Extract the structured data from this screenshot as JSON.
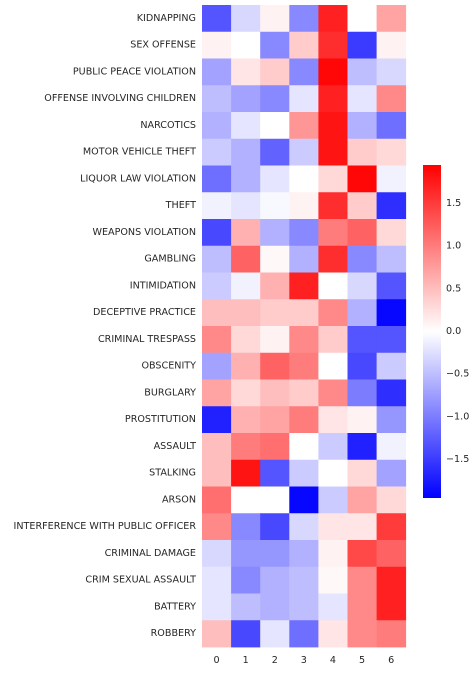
{
  "chart_data": {
    "type": "heatmap",
    "title": "",
    "xlabel": "",
    "ylabel": "",
    "x_categories": [
      "0",
      "1",
      "2",
      "3",
      "4",
      "5",
      "6"
    ],
    "y_categories": [
      "KIDNAPPING",
      "SEX OFFENSE",
      "PUBLIC PEACE VIOLATION",
      "OFFENSE INVOLVING CHILDREN",
      "NARCOTICS",
      "MOTOR VEHICLE THEFT",
      "LIQUOR LAW VIOLATION",
      "THEFT",
      "WEAPONS VIOLATION",
      "GAMBLING",
      "INTIMIDATION",
      "DECEPTIVE PRACTICE",
      "CRIMINAL TRESPASS",
      "OBSCENITY",
      "BURGLARY",
      "PROSTITUTION",
      "ASSAULT",
      "STALKING",
      "ARSON",
      "INTERFERENCE WITH PUBLIC OFFICER",
      "CRIMINAL DAMAGE",
      "CRIM SEXUAL ASSAULT",
      "BATTERY",
      "ROBBERY"
    ],
    "values": [
      [
        -1.3,
        -0.3,
        0.1,
        -0.9,
        1.7,
        0.0,
        0.7
      ],
      [
        0.1,
        0.0,
        -0.9,
        0.4,
        1.6,
        -1.5,
        0.1
      ],
      [
        -0.7,
        0.2,
        0.4,
        -0.9,
        1.9,
        -0.5,
        -0.3
      ],
      [
        -0.5,
        -0.7,
        -0.9,
        -0.2,
        1.7,
        -0.2,
        0.9
      ],
      [
        -0.6,
        -0.2,
        0.0,
        0.8,
        1.8,
        -0.6,
        -1.1
      ],
      [
        -0.4,
        -0.6,
        -1.2,
        -0.4,
        1.8,
        0.4,
        0.3
      ],
      [
        -1.1,
        -0.6,
        -0.2,
        0.0,
        0.3,
        1.9,
        -0.1
      ],
      [
        -0.1,
        -0.2,
        -0.05,
        0.1,
        1.6,
        0.4,
        -1.6
      ],
      [
        -1.4,
        0.6,
        -0.6,
        -0.9,
        1.0,
        1.2,
        0.3
      ],
      [
        -0.5,
        1.2,
        0.05,
        -0.6,
        1.6,
        -0.9,
        -0.5
      ],
      [
        -0.4,
        -0.1,
        0.6,
        1.7,
        0.0,
        -0.3,
        -1.3
      ],
      [
        0.5,
        0.5,
        0.4,
        0.4,
        0.9,
        -0.6,
        -1.9
      ],
      [
        0.9,
        0.3,
        0.1,
        0.9,
        0.4,
        -1.3,
        -1.3
      ],
      [
        -0.7,
        0.6,
        1.2,
        1.0,
        0.0,
        -1.4,
        -0.4
      ],
      [
        0.7,
        0.3,
        0.5,
        0.4,
        0.9,
        -1.0,
        -1.6
      ],
      [
        -1.7,
        0.6,
        0.7,
        1.0,
        0.2,
        0.1,
        -0.8
      ],
      [
        0.5,
        1.0,
        1.1,
        0.0,
        -0.4,
        -1.7,
        -0.1
      ],
      [
        0.5,
        1.8,
        -1.3,
        -0.4,
        0.0,
        0.3,
        -0.7
      ],
      [
        1.1,
        0.0,
        0.0,
        -1.9,
        -0.4,
        0.7,
        0.3
      ],
      [
        0.9,
        -0.9,
        -1.4,
        -0.3,
        0.2,
        0.2,
        1.5
      ],
      [
        -0.3,
        -0.8,
        -0.8,
        -0.6,
        0.1,
        1.4,
        1.2
      ],
      [
        -0.2,
        -0.9,
        -0.6,
        -0.5,
        0.05,
        0.9,
        1.7
      ],
      [
        -0.2,
        -0.5,
        -0.6,
        -0.5,
        -0.2,
        0.9,
        1.7
      ],
      [
        0.5,
        -1.4,
        -0.2,
        -1.1,
        0.2,
        0.9,
        1.0
      ]
    ],
    "colormap": "bwr",
    "vmin": -1.95,
    "vmax": 1.95,
    "colorbar_ticks": [
      -1.5,
      -1.0,
      -0.5,
      0.0,
      0.5,
      1.0,
      1.5
    ],
    "colorbar_tick_labels": [
      "−1.5",
      "−1.0",
      "−0.5",
      "0.0",
      "0.5",
      "1.0",
      "1.5"
    ],
    "grid": false,
    "colorbar_position": "right"
  }
}
